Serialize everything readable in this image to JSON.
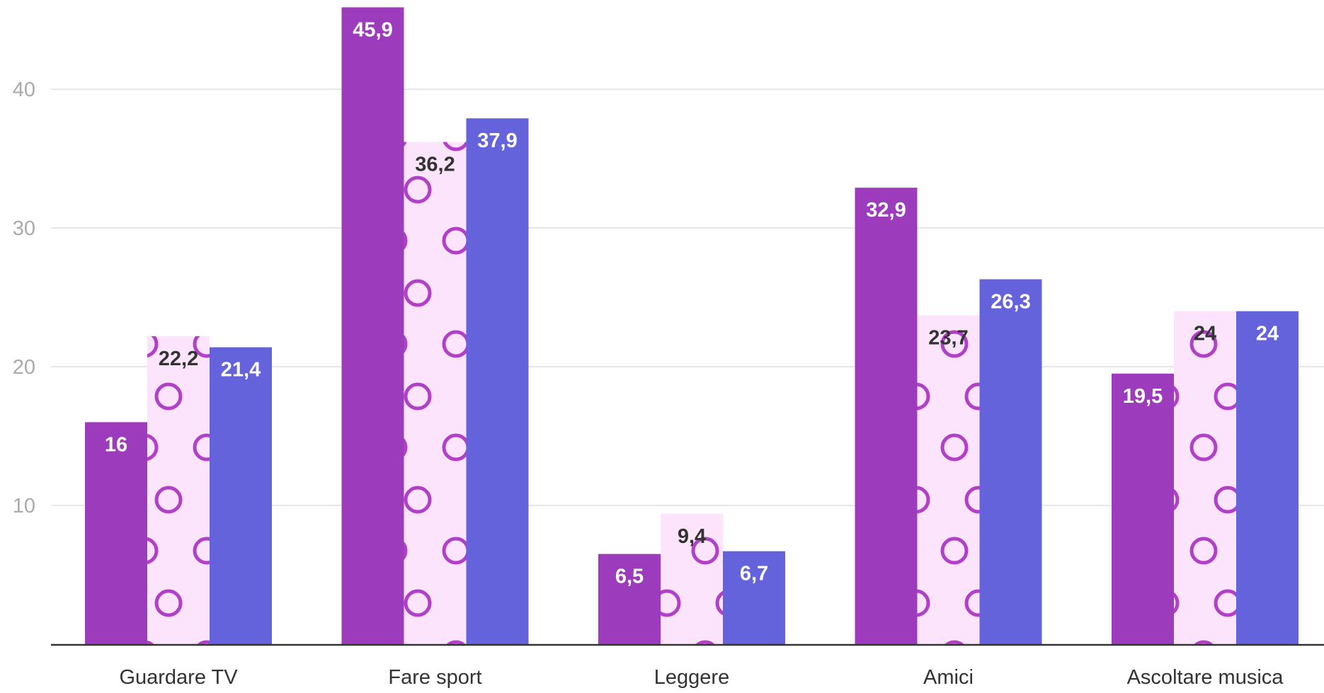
{
  "chart_data": {
    "type": "bar",
    "categories": [
      "Guardare TV",
      "Fare sport",
      "Leggere",
      "Amici",
      "Ascoltare musica"
    ],
    "series": [
      {
        "values": [
          16,
          45.9,
          6.5,
          32.9,
          19.5
        ],
        "labels": [
          "16",
          "45,9",
          "6,5",
          "32,9",
          "19,5"
        ],
        "color": "#9c3bbb",
        "pattern": "solid"
      },
      {
        "values": [
          22.2,
          36.2,
          9.4,
          23.7,
          24
        ],
        "labels": [
          "22,2",
          "36,2",
          "9,4",
          "23,7",
          "24"
        ],
        "color": "#fce4fc",
        "pattern": "circles",
        "pattern_color": "#b23fc7"
      },
      {
        "values": [
          21.4,
          37.9,
          6.7,
          26.3,
          24
        ],
        "labels": [
          "21,4",
          "37,9",
          "6,7",
          "26,3",
          "24"
        ],
        "color": "#6563dc",
        "pattern": "solid"
      }
    ],
    "yticks": [
      "10",
      "20",
      "30",
      "40"
    ],
    "ylim": [
      0,
      46
    ],
    "grid": true,
    "xlabel": "",
    "ylabel": "",
    "title": ""
  },
  "colors": {
    "grid": "#e6e6e6",
    "axis": "#333333",
    "tick_label": "#aaaaaa",
    "category_label": "#333333",
    "label_on_dark": "#ffffff",
    "label_on_light": "#333333"
  }
}
